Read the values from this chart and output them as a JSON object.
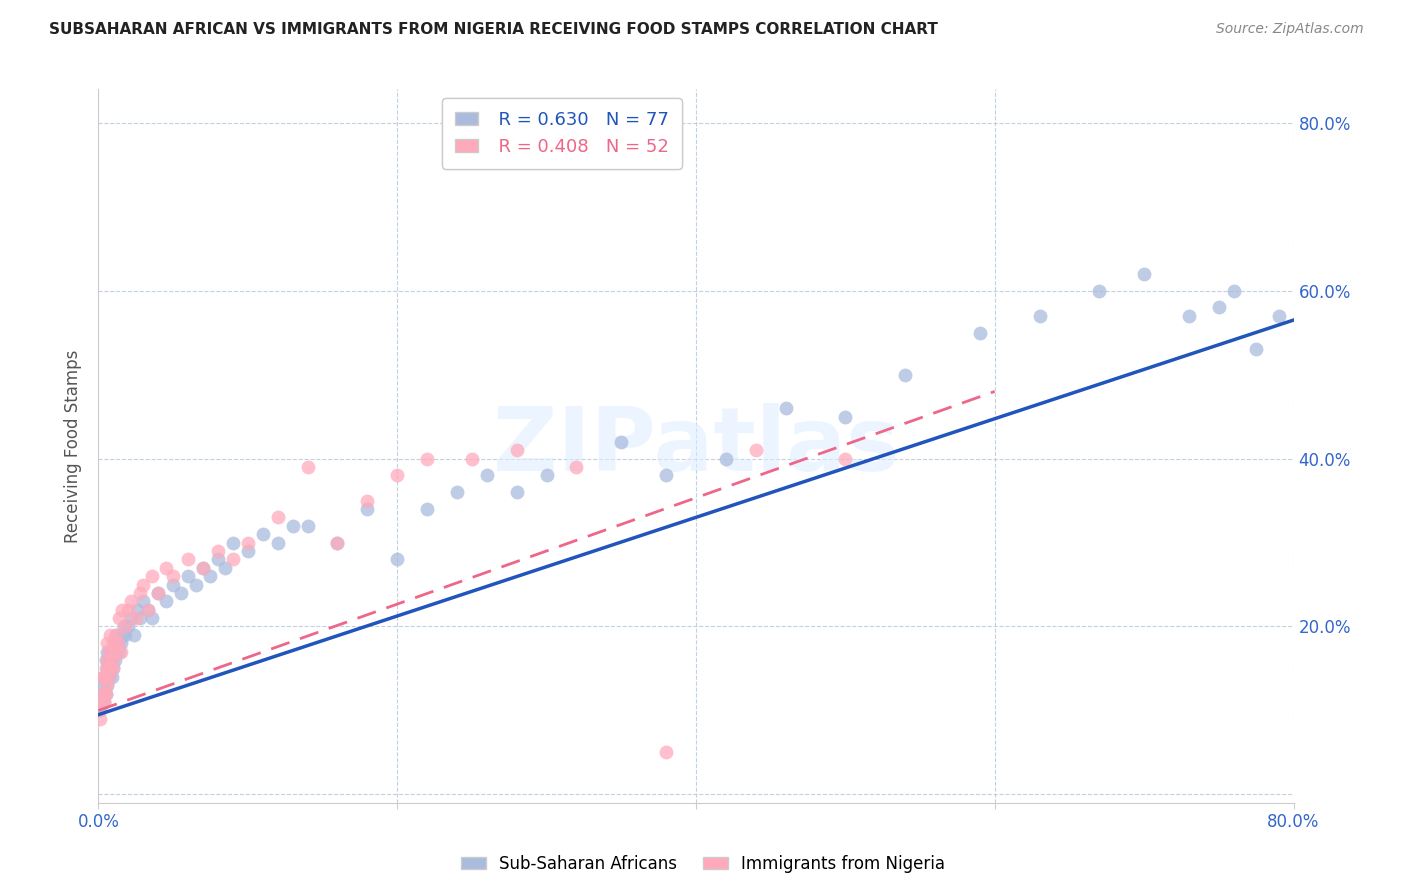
{
  "title": "SUBSAHARAN AFRICAN VS IMMIGRANTS FROM NIGERIA RECEIVING FOOD STAMPS CORRELATION CHART",
  "source": "Source: ZipAtlas.com",
  "ylabel": "Receiving Food Stamps",
  "watermark": "ZIPatlas",
  "xlim": [
    0.0,
    0.8
  ],
  "ylim": [
    -0.01,
    0.84
  ],
  "blue_R": 0.63,
  "blue_N": 77,
  "pink_R": 0.408,
  "pink_N": 52,
  "blue_color": "#AABBDD",
  "pink_color": "#FFAABB",
  "blue_line_color": "#2255BB",
  "pink_line_color": "#EE6688",
  "legend_label_blue": "Sub-Saharan Africans",
  "legend_label_pink": "Immigrants from Nigeria",
  "blue_x": [
    0.001,
    0.002,
    0.003,
    0.003,
    0.004,
    0.004,
    0.005,
    0.005,
    0.005,
    0.006,
    0.006,
    0.006,
    0.007,
    0.007,
    0.008,
    0.008,
    0.009,
    0.009,
    0.01,
    0.01,
    0.011,
    0.011,
    0.012,
    0.012,
    0.013,
    0.014,
    0.015,
    0.016,
    0.017,
    0.018,
    0.02,
    0.022,
    0.024,
    0.026,
    0.028,
    0.03,
    0.033,
    0.036,
    0.04,
    0.045,
    0.05,
    0.055,
    0.06,
    0.065,
    0.07,
    0.075,
    0.08,
    0.085,
    0.09,
    0.1,
    0.11,
    0.12,
    0.13,
    0.14,
    0.16,
    0.18,
    0.2,
    0.22,
    0.24,
    0.26,
    0.28,
    0.3,
    0.35,
    0.38,
    0.42,
    0.46,
    0.5,
    0.54,
    0.59,
    0.63,
    0.67,
    0.7,
    0.73,
    0.75,
    0.76,
    0.775,
    0.79
  ],
  "blue_y": [
    0.1,
    0.11,
    0.12,
    0.13,
    0.11,
    0.14,
    0.12,
    0.14,
    0.16,
    0.13,
    0.15,
    0.17,
    0.14,
    0.16,
    0.15,
    0.17,
    0.14,
    0.16,
    0.15,
    0.17,
    0.16,
    0.18,
    0.17,
    0.19,
    0.18,
    0.17,
    0.18,
    0.19,
    0.2,
    0.19,
    0.2,
    0.21,
    0.19,
    0.22,
    0.21,
    0.23,
    0.22,
    0.21,
    0.24,
    0.23,
    0.25,
    0.24,
    0.26,
    0.25,
    0.27,
    0.26,
    0.28,
    0.27,
    0.3,
    0.29,
    0.31,
    0.3,
    0.32,
    0.32,
    0.3,
    0.34,
    0.28,
    0.34,
    0.36,
    0.38,
    0.36,
    0.38,
    0.42,
    0.38,
    0.4,
    0.46,
    0.45,
    0.5,
    0.55,
    0.57,
    0.6,
    0.62,
    0.57,
    0.58,
    0.6,
    0.53,
    0.57
  ],
  "pink_x": [
    0.001,
    0.002,
    0.003,
    0.003,
    0.004,
    0.004,
    0.005,
    0.005,
    0.006,
    0.006,
    0.006,
    0.007,
    0.007,
    0.008,
    0.008,
    0.009,
    0.01,
    0.01,
    0.011,
    0.012,
    0.013,
    0.014,
    0.015,
    0.016,
    0.018,
    0.02,
    0.022,
    0.025,
    0.028,
    0.03,
    0.033,
    0.036,
    0.04,
    0.045,
    0.05,
    0.06,
    0.07,
    0.08,
    0.09,
    0.1,
    0.12,
    0.14,
    0.16,
    0.18,
    0.2,
    0.22,
    0.25,
    0.28,
    0.32,
    0.38,
    0.44,
    0.5
  ],
  "pink_y": [
    0.09,
    0.11,
    0.12,
    0.14,
    0.11,
    0.14,
    0.12,
    0.15,
    0.13,
    0.16,
    0.18,
    0.14,
    0.17,
    0.15,
    0.19,
    0.16,
    0.15,
    0.18,
    0.17,
    0.19,
    0.18,
    0.21,
    0.17,
    0.22,
    0.2,
    0.22,
    0.23,
    0.21,
    0.24,
    0.25,
    0.22,
    0.26,
    0.24,
    0.27,
    0.26,
    0.28,
    0.27,
    0.29,
    0.28,
    0.3,
    0.33,
    0.39,
    0.3,
    0.35,
    0.38,
    0.4,
    0.4,
    0.41,
    0.39,
    0.05,
    0.41,
    0.4
  ],
  "blue_line_x": [
    0.0,
    0.8
  ],
  "blue_line_y": [
    0.095,
    0.565
  ],
  "pink_line_x": [
    0.0,
    0.6
  ],
  "pink_line_y": [
    0.1,
    0.48
  ]
}
